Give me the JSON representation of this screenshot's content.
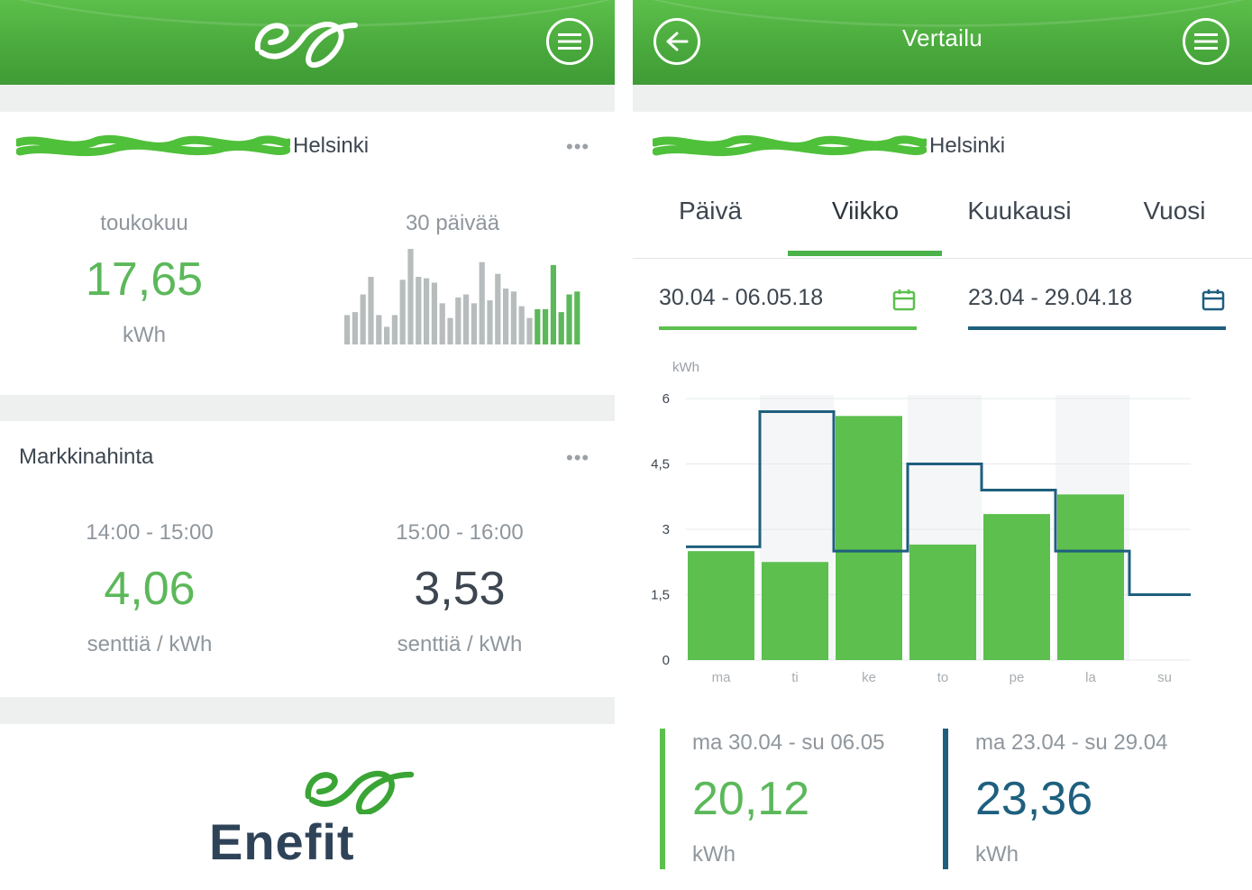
{
  "left": {
    "header": {
      "menu_icon": "hamburger-menu-icon",
      "logo_icon": "enefit-eo-logo-icon"
    },
    "consumption_card": {
      "location": "Helsinki",
      "more_icon": "more-dots-icon",
      "month_label": "toukokuu",
      "month_value": "17,65",
      "month_unit": "kWh",
      "days_label": "30 päivää",
      "spark_values": [
        2.0,
        2.2,
        3.4,
        4.6,
        2.0,
        1.2,
        2.0,
        4.4,
        6.5,
        4.6,
        4.5,
        4.2,
        2.8,
        1.8,
        3.2,
        3.4,
        2.8,
        5.6,
        3.0,
        4.8,
        3.8,
        3.6,
        2.6,
        1.8,
        2.4,
        2.4,
        5.4,
        2.2,
        3.4,
        3.6
      ],
      "spark_highlight_from": 24,
      "colors": {
        "green": "#5cb85a",
        "grey": "#b7bcbd"
      }
    },
    "market_card": {
      "title": "Markkinahinta",
      "more_icon": "more-dots-icon",
      "slot1_time": "14:00 - 15:00",
      "slot1_price": "4,06",
      "slot1_unit": "senttiä / kWh",
      "slot2_time": "15:00 - 16:00",
      "slot2_price": "3,53",
      "slot2_unit": "senttiä / kWh"
    },
    "footer": {
      "brand": "Enefit",
      "logo_icon": "enefit-eo-logo-icon"
    }
  },
  "right": {
    "header": {
      "back_icon": "back-arrow-icon",
      "title": "Vertailu",
      "menu_icon": "hamburger-menu-icon"
    },
    "location": "Helsinki",
    "tabs": [
      {
        "label": "Päivä",
        "active": false
      },
      {
        "label": "Viikko",
        "active": true
      },
      {
        "label": "Kuukausi",
        "active": false
      },
      {
        "label": "Vuosi",
        "active": false
      }
    ],
    "date_current": "30.04 - 06.05.18",
    "date_previous": "23.04 - 29.04.18",
    "calendar_icon": "calendar-icon",
    "summary_current": {
      "range": "ma 30.04 - su 06.05",
      "value": "20,12",
      "unit": "kWh"
    },
    "summary_previous": {
      "range": "ma 23.04 - su 29.04",
      "value": "23,36",
      "unit": "kWh"
    },
    "colors": {
      "current": "#5cbf4e",
      "previous": "#1e5f7e",
      "shade": "#f4f6f7"
    }
  },
  "chart_data": {
    "type": "bar",
    "ylabel": "kWh",
    "ylim": [
      0,
      6
    ],
    "yticks": [
      "0",
      "1,5",
      "3",
      "4,5",
      "6"
    ],
    "ytick_values": [
      0,
      1.5,
      3,
      4.5,
      6
    ],
    "categories": [
      "ma",
      "ti",
      "ke",
      "to",
      "pe",
      "la",
      "su"
    ],
    "series": [
      {
        "values": [
          2.5,
          2.25,
          5.6,
          2.65,
          3.35,
          3.8,
          0
        ],
        "style": "bar"
      },
      {
        "values": [
          2.6,
          5.7,
          2.5,
          4.5,
          3.9,
          2.5,
          1.5
        ],
        "style": "step"
      }
    ],
    "shaded_days": [
      "ti",
      "to",
      "la"
    ],
    "grid": true
  }
}
